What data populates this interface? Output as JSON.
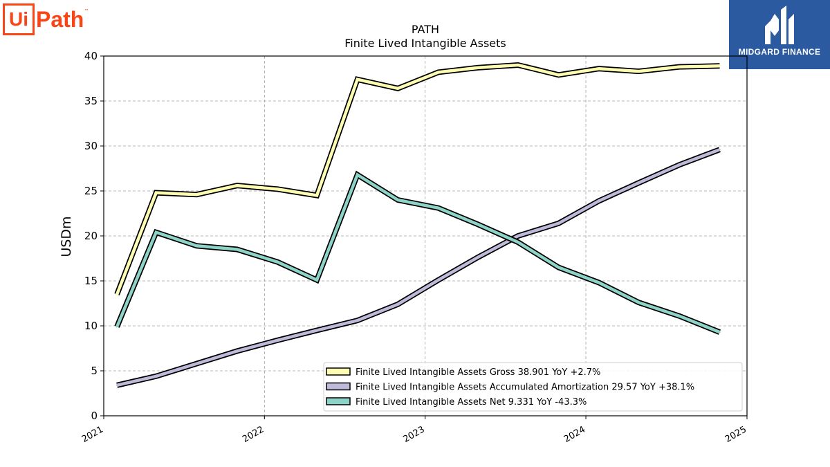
{
  "logos": {
    "uipath": {
      "ui": "Ui",
      "path": "Path",
      "tm": "™"
    },
    "midgard": {
      "text": "MIDGARD FINANCE",
      "color": "#2c5aa0"
    }
  },
  "chart_data": {
    "type": "line",
    "title": "PATH",
    "subtitle": "Finite Lived Intangible Assets",
    "xlabel": "",
    "ylabel": "USDm",
    "xlim": [
      "2021-01-01",
      "2025-01-01"
    ],
    "ylim": [
      0,
      40
    ],
    "x_ticks": [
      "2021",
      "2022",
      "2023",
      "2024",
      "2025"
    ],
    "y_ticks": [
      0,
      5,
      10,
      15,
      20,
      25,
      30,
      35,
      40
    ],
    "grid": true,
    "legend_position": "lower-right",
    "x": [
      "2021-01-31",
      "2021-04-30",
      "2021-07-31",
      "2021-10-31",
      "2022-01-31",
      "2022-04-30",
      "2022-07-31",
      "2022-10-31",
      "2023-01-31",
      "2023-04-30",
      "2023-07-31",
      "2023-10-31",
      "2024-01-31",
      "2024-04-30",
      "2024-07-31",
      "2024-10-31"
    ],
    "series": [
      {
        "name": "Finite Lived Intangible Assets Gross",
        "label": "Finite Lived Intangible Assets Gross  38.901 YoY +2.7%",
        "color": "#ffffb3",
        "values": [
          13.5,
          24.8,
          24.6,
          25.6,
          25.2,
          24.5,
          37.4,
          36.4,
          38.2,
          38.7,
          39.0,
          37.9,
          38.6,
          38.3,
          38.8,
          38.9
        ]
      },
      {
        "name": "Finite Lived Intangible Assets Accumulated Amortization",
        "label": "Finite Lived Intangible Assets Accumulated Amortization  29.57 YoY +38.1%",
        "color": "#bebada",
        "values": [
          3.4,
          4.4,
          5.8,
          7.2,
          8.4,
          9.5,
          10.6,
          12.4,
          15.1,
          17.6,
          20.0,
          21.4,
          23.9,
          25.9,
          27.9,
          29.6
        ]
      },
      {
        "name": "Finite Lived Intangible Assets Net",
        "label": "Finite Lived Intangible Assets Net  9.331 YoY -43.3%",
        "color": "#8dd3c7",
        "values": [
          9.9,
          20.4,
          18.9,
          18.5,
          17.1,
          15.1,
          26.8,
          24.0,
          23.1,
          21.3,
          19.3,
          16.5,
          14.8,
          12.6,
          11.1,
          9.3
        ]
      }
    ]
  }
}
